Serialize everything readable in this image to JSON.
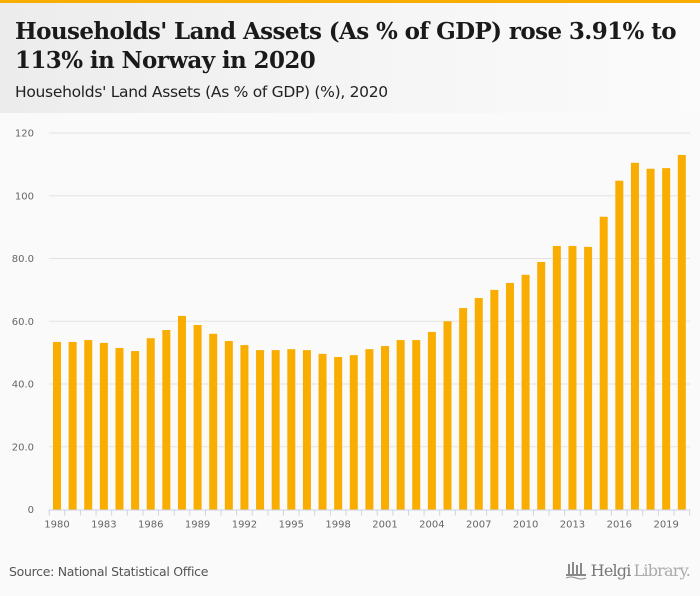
{
  "header": {
    "title": "Households' Land Assets (As % of GDP) rose 3.91% to 113% in Norway in 2020",
    "subtitle": "Households' Land Assets (As % of GDP) (%), 2020"
  },
  "footer": {
    "source": "Source: National Statistical Office",
    "logo_bold": "Helgi",
    "logo_light": "Library."
  },
  "colors": {
    "bar": "#f9ad00",
    "grid": "#e3e3e3",
    "axis_tick": "#c9d3e6",
    "accent_bar": "#f9ad00"
  },
  "chart_data": {
    "type": "bar",
    "title": "Households' Land Assets (As % of GDP) (%), 2020",
    "xlabel": "",
    "ylabel": "",
    "ylim": [
      0,
      120
    ],
    "yticks": [
      0,
      20,
      40,
      60,
      80,
      100,
      120
    ],
    "ytick_labels": [
      "0",
      "20.0",
      "40.0",
      "60.0",
      "80.0",
      "100",
      "120"
    ],
    "xtick_labels": [
      "1980",
      "1983",
      "1986",
      "1989",
      "1992",
      "1995",
      "1998",
      "2001",
      "2004",
      "2007",
      "2010",
      "2013",
      "2016",
      "2019"
    ],
    "grid": true,
    "legend": "none",
    "categories": [
      "1980",
      "1981",
      "1982",
      "1983",
      "1984",
      "1985",
      "1986",
      "1987",
      "1988",
      "1989",
      "1990",
      "1991",
      "1992",
      "1993",
      "1994",
      "1995",
      "1996",
      "1997",
      "1998",
      "1999",
      "2000",
      "2001",
      "2002",
      "2003",
      "2004",
      "2005",
      "2006",
      "2007",
      "2008",
      "2009",
      "2010",
      "2011",
      "2012",
      "2013",
      "2014",
      "2015",
      "2016",
      "2017",
      "2018",
      "2019",
      "2020"
    ],
    "values": [
      53.4,
      53.4,
      54.0,
      53.1,
      51.5,
      50.5,
      54.6,
      57.2,
      61.7,
      58.8,
      56.0,
      53.7,
      52.4,
      50.8,
      50.8,
      51.1,
      50.8,
      49.6,
      48.6,
      49.2,
      51.1,
      52.1,
      54.0,
      54.0,
      56.6,
      60.0,
      64.2,
      67.4,
      70.0,
      72.2,
      74.8,
      78.9,
      84.0,
      84.0,
      83.7,
      93.3,
      104.8,
      110.5,
      108.6,
      108.8,
      113.0
    ]
  }
}
